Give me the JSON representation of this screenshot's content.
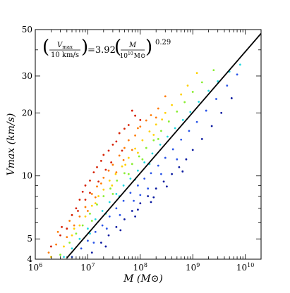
{
  "chart_data": {
    "type": "scatter",
    "xscale": "log",
    "yscale": "log",
    "xlim": [
      1000000,
      20000000000
    ],
    "ylim": [
      4,
      50
    ],
    "xlabel": "M (M⊙)",
    "ylabel": "Vmax (km/s)",
    "x_ticks": [
      {
        "value": 1000000,
        "label": "10^6"
      },
      {
        "value": 10000000,
        "label": "10^7"
      },
      {
        "value": 100000000,
        "label": "10^8"
      },
      {
        "value": 1000000000,
        "label": "10^9"
      },
      {
        "value": 10000000000,
        "label": "10^10"
      }
    ],
    "y_ticks": [
      {
        "value": 4,
        "label": "4"
      },
      {
        "value": 5,
        "label": "5"
      },
      {
        "value": 10,
        "label": "10"
      },
      {
        "value": 20,
        "label": "20"
      },
      {
        "value": 30,
        "label": "30"
      },
      {
        "value": 50,
        "label": "50"
      }
    ],
    "annotation": {
      "lhs_num": "V",
      "lhs_num_sub": "max",
      "lhs_den": "10 km/s",
      "eq": "=3.92",
      "rhs_num": "M",
      "rhs_den": "10",
      "rhs_den_exp": "10",
      "rhs_den_unit": "M⊙",
      "exponent": "0.29"
    },
    "fit_line": {
      "coefficient": 3.92,
      "exponent": 0.29,
      "pivot_mass": 10000000000,
      "pivot_velocity": 10,
      "color": "#000000"
    },
    "series": [
      {
        "color": "#d62000",
        "points": [
          [
            2000000.0,
            4.6
          ],
          [
            3000000.0,
            5.2
          ],
          [
            4000000.0,
            5.6
          ],
          [
            5000000.0,
            6.5
          ],
          [
            6000000.0,
            7.0
          ],
          [
            7000000.0,
            7.7
          ],
          [
            8000000.0,
            8.4
          ],
          [
            9000000.0,
            9.0
          ],
          [
            11000000.0,
            9.5
          ],
          [
            13000000.0,
            10.4
          ],
          [
            15000000.0,
            11.0
          ],
          [
            18000000.0,
            11.8
          ],
          [
            20000000.0,
            12.6
          ],
          [
            25000000.0,
            13.2
          ],
          [
            30000000.0,
            14.1
          ],
          [
            35000000.0,
            14.6
          ],
          [
            40000000.0,
            16.0
          ],
          [
            50000000.0,
            16.8
          ],
          [
            60000000.0,
            17.5
          ],
          [
            80000000.0,
            19.4
          ],
          [
            11000000.0,
            8.3
          ],
          [
            16000000.0,
            9.4
          ],
          [
            22000000.0,
            10.7
          ],
          [
            28000000.0,
            11.6
          ],
          [
            45000000.0,
            13.2
          ],
          [
            3200000.0,
            5.7
          ],
          [
            6500000.0,
            6.8
          ],
          [
            100000000.0,
            18.5
          ],
          [
            70000000.0,
            20.5
          ],
          [
            9000000.0,
            7.7
          ]
        ]
      },
      {
        "color": "#ff7a00",
        "points": [
          [
            1800000.0,
            4.3
          ],
          [
            2500000.0,
            4.7
          ],
          [
            4000000.0,
            5.1
          ],
          [
            5500000.0,
            5.8
          ],
          [
            7000000.0,
            6.4
          ],
          [
            9000000.0,
            7.1
          ],
          [
            12000000.0,
            8.2
          ],
          [
            15000000.0,
            8.9
          ],
          [
            20000000.0,
            9.8
          ],
          [
            25000000.0,
            10.6
          ],
          [
            30000000.0,
            11.3
          ],
          [
            40000000.0,
            12.5
          ],
          [
            50000000.0,
            13.6
          ],
          [
            60000000.0,
            14.8
          ],
          [
            80000000.0,
            15.6
          ],
          [
            100000000.0,
            17.2
          ],
          [
            130000000.0,
            18.4
          ],
          [
            160000000.0,
            19.5
          ],
          [
            220000000.0,
            21.0
          ],
          [
            10000000.0,
            6.8
          ],
          [
            14000000.0,
            7.9
          ],
          [
            35000000.0,
            10.4
          ],
          [
            70000000.0,
            13.3
          ],
          [
            200000000.0,
            19.0
          ],
          [
            2700000.0,
            5.4
          ],
          [
            4500000.0,
            6.1
          ],
          [
            18000000.0,
            9.2
          ],
          [
            48000000.0,
            11.9
          ],
          [
            300000000.0,
            24.0
          ],
          [
            90000000.0,
            16.9
          ]
        ]
      },
      {
        "color": "#ffd000",
        "points": [
          [
            2000000.0,
            4.1
          ],
          [
            3500000.0,
            4.6
          ],
          [
            5000000.0,
            5.2
          ],
          [
            7000000.0,
            5.8
          ],
          [
            9000000.0,
            6.4
          ],
          [
            12000000.0,
            7.2
          ],
          [
            16000000.0,
            8.0
          ],
          [
            20000000.0,
            8.6
          ],
          [
            26000000.0,
            9.5
          ],
          [
            34000000.0,
            10.2
          ],
          [
            45000000.0,
            11.1
          ],
          [
            60000000.0,
            12.2
          ],
          [
            80000000.0,
            13.5
          ],
          [
            110000000.0,
            14.8
          ],
          [
            150000000.0,
            16.3
          ],
          [
            200000000.0,
            17.6
          ],
          [
            300000000.0,
            20.0
          ],
          [
            400000000.0,
            21.8
          ],
          [
            600000000.0,
            24.5
          ],
          [
            800000000.0,
            27.0
          ],
          [
            1200000000.0,
            31.0
          ],
          [
            5500000.0,
            5.6
          ],
          [
            14000000.0,
            7.4
          ],
          [
            29000000.0,
            9.0
          ],
          [
            52000000.0,
            11.3
          ],
          [
            90000000.0,
            12.9
          ],
          [
            180000000.0,
            15.7
          ],
          [
            260000000.0,
            18.6
          ]
        ]
      },
      {
        "color": "#88ee30",
        "points": [
          [
            3000000.0,
            4.2
          ],
          [
            4500000.0,
            4.8
          ],
          [
            6000000.0,
            5.3
          ],
          [
            8000000.0,
            5.8
          ],
          [
            11000000.0,
            6.6
          ],
          [
            15000000.0,
            7.3
          ],
          [
            20000000.0,
            8.0
          ],
          [
            27000000.0,
            8.7
          ],
          [
            36000000.0,
            9.5
          ],
          [
            50000000.0,
            10.3
          ],
          [
            70000000.0,
            11.4
          ],
          [
            95000000.0,
            12.4
          ],
          [
            130000000.0,
            13.6
          ],
          [
            180000000.0,
            14.8
          ],
          [
            250000000.0,
            16.4
          ],
          [
            350000000.0,
            18.2
          ],
          [
            500000000.0,
            20.3
          ],
          [
            700000000.0,
            22.5
          ],
          [
            1000000000.0,
            25.2
          ],
          [
            1500000000.0,
            28.0
          ],
          [
            2500000000.0,
            32.0
          ],
          [
            12000000.0,
            6.1
          ],
          [
            30000000.0,
            8.2
          ],
          [
            60000000.0,
            10.2
          ],
          [
            110000000.0,
            12.0
          ],
          [
            220000000.0,
            15.0
          ]
        ]
      },
      {
        "color": "#20d8e0",
        "points": [
          [
            3500000.0,
            4.1
          ],
          [
            5000000.0,
            4.5
          ],
          [
            7000000.0,
            5.0
          ],
          [
            10000000.0,
            5.6
          ],
          [
            14000000.0,
            6.2
          ],
          [
            19000000.0,
            6.8
          ],
          [
            26000000.0,
            7.5
          ],
          [
            35000000.0,
            8.2
          ],
          [
            48000000.0,
            9.0
          ],
          [
            65000000.0,
            9.7
          ],
          [
            90000000.0,
            10.6
          ],
          [
            120000000.0,
            11.6
          ],
          [
            170000000.0,
            12.8
          ],
          [
            240000000.0,
            14.1
          ],
          [
            330000000.0,
            15.4
          ],
          [
            460000000.0,
            16.9
          ],
          [
            650000000.0,
            18.5
          ],
          [
            900000000.0,
            20.2
          ],
          [
            1300000000.0,
            22.6
          ],
          [
            2000000000.0,
            25.5
          ],
          [
            3000000000.0,
            28.3
          ],
          [
            5000000000.0,
            31.5
          ],
          [
            8000000000.0,
            34.0
          ],
          [
            11000000.0,
            5.3
          ],
          [
            22000000.0,
            6.6
          ],
          [
            40000000.0,
            8.0
          ],
          [
            80000000.0,
            9.6
          ],
          [
            150000000.0,
            11.4
          ]
        ]
      },
      {
        "color": "#2a55e8",
        "points": [
          [
            5000000.0,
            4.1
          ],
          [
            7500000.0,
            4.5
          ],
          [
            10000000.0,
            4.9
          ],
          [
            14000000.0,
            5.4
          ],
          [
            19000000.0,
            5.8
          ],
          [
            26000000.0,
            6.4
          ],
          [
            35000000.0,
            7.0
          ],
          [
            48000000.0,
            7.6
          ],
          [
            65000000.0,
            8.3
          ],
          [
            90000000.0,
            9.0
          ],
          [
            120000000.0,
            9.7
          ],
          [
            160000000.0,
            10.3
          ],
          [
            220000000.0,
            11.2
          ],
          [
            300000000.0,
            12.2
          ],
          [
            420000000.0,
            13.4
          ],
          [
            600000000.0,
            14.9
          ],
          [
            850000000.0,
            16.4
          ],
          [
            1200000000.0,
            18.1
          ],
          [
            1800000000.0,
            20.5
          ],
          [
            2800000000.0,
            23.3
          ],
          [
            4500000000.0,
            27.0
          ],
          [
            7000000000.0,
            30.5
          ],
          [
            13000000.0,
            4.8
          ],
          [
            23000000.0,
            5.6
          ],
          [
            41000000.0,
            6.5
          ],
          [
            75000000.0,
            7.6
          ],
          [
            140000000.0,
            8.7
          ],
          [
            250000000.0,
            10.2
          ],
          [
            500000000.0,
            12.0
          ],
          [
            100000000.0,
            8.1
          ]
        ]
      },
      {
        "color": "#0a1aa0",
        "points": [
          [
            12000000.0,
            4.3
          ],
          [
            18000000.0,
            4.8
          ],
          [
            25000000.0,
            5.2
          ],
          [
            35000000.0,
            5.7
          ],
          [
            50000000.0,
            6.2
          ],
          [
            70000000.0,
            6.8
          ],
          [
            100000000.0,
            7.4
          ],
          [
            140000000.0,
            8.0
          ],
          [
            200000000.0,
            8.7
          ],
          [
            280000000.0,
            9.4
          ],
          [
            400000000.0,
            10.2
          ],
          [
            550000000.0,
            11.0
          ],
          [
            750000000.0,
            12.0
          ],
          [
            1000000000.0,
            13.3
          ],
          [
            1500000000.0,
            15.0
          ],
          [
            2300000000.0,
            17.3
          ],
          [
            3500000000.0,
            20.0
          ],
          [
            5500000000.0,
            23.5
          ],
          [
            22000000.0,
            4.6
          ],
          [
            42000000.0,
            5.5
          ],
          [
            80000000.0,
            6.4
          ],
          [
            160000000.0,
            7.5
          ],
          [
            320000000.0,
            8.9
          ],
          [
            640000000.0,
            10.5
          ],
          [
            90000000.0,
            6.9
          ],
          [
            180000000.0,
            7.9
          ]
        ]
      }
    ]
  }
}
